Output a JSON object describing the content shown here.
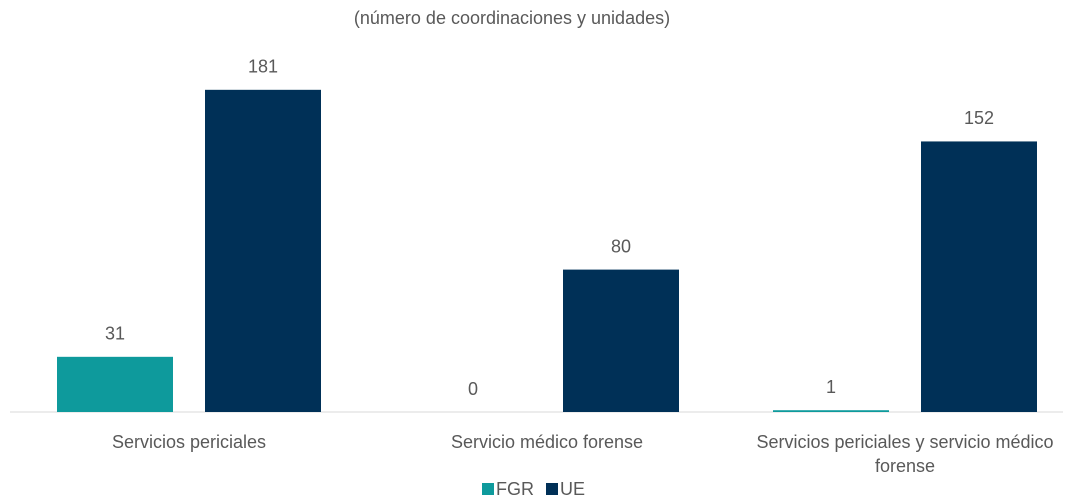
{
  "chart_data": {
    "type": "bar",
    "subtitle": "(número de coordinaciones y unidades)",
    "categories": [
      "Servicios periciales",
      "Servicio médico forense",
      "Servicios periciales y servicio médico forense"
    ],
    "series": [
      {
        "name": "FGR",
        "color": "#0e9a9c",
        "values": [
          31,
          0,
          1
        ]
      },
      {
        "name": "UE",
        "color": "#003057",
        "values": [
          181,
          80,
          152
        ]
      }
    ],
    "ylim": [
      0,
      200
    ],
    "legend": "bottom"
  }
}
